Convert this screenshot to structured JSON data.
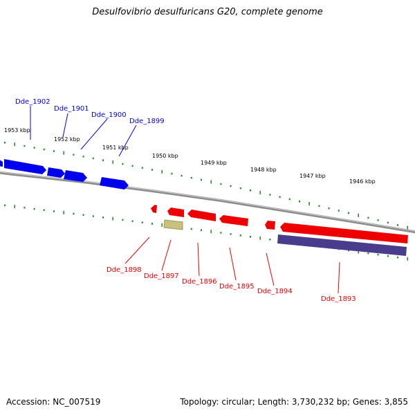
{
  "title": "Desulfovibrio desulfuricans G20, complete genome",
  "footer": {
    "accession": "Accession: NC_007519",
    "summary": "Topology: circular; Length: 3,730,232 bp; Genes: 3,855"
  },
  "kbp_labels": [
    "1953 kbp",
    "1952 kbp",
    "1951 kbp",
    "1950 kbp",
    "1949 kbp",
    "1948 kbp",
    "1947 kbp",
    "1946 kbp"
  ],
  "forward_genes": [
    "Dde_1902",
    "Dde_1901",
    "Dde_1900",
    "Dde_1899"
  ],
  "reverse_genes": [
    "Dde_1898",
    "Dde_1897",
    "Dde_1896",
    "Dde_1895",
    "Dde_1894",
    "Dde_1893"
  ],
  "colors": {
    "forward": "#0000ee",
    "reverse": "#ee0000",
    "rna": "#c8c080",
    "pseudo": "#4a3c8c",
    "ticks": "#1a8a1a",
    "backbone": "#8c8c8c"
  }
}
